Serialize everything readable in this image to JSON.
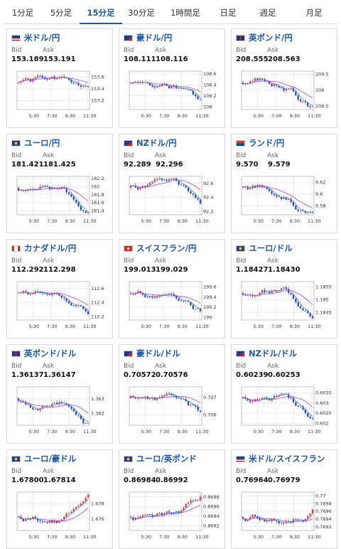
{
  "tabs": [
    {
      "label": "1分足",
      "active": false
    },
    {
      "label": "5分足",
      "active": false
    },
    {
      "label": "15分足",
      "active": true
    },
    {
      "label": "30分足",
      "active": false
    },
    {
      "label": "1時間足",
      "active": false
    },
    {
      "label": "日足",
      "active": false
    },
    {
      "label": "週足",
      "active": false
    },
    {
      "label": "月足",
      "active": false
    }
  ],
  "labels": {
    "bid": "Bid",
    "ask": "Ask"
  },
  "colors": {
    "up": "#e23b3b",
    "down": "#2a3fbf",
    "ma_fast": "#2a9bd8",
    "ma_slow": "#c23ad0",
    "grid": "#bbbbbb"
  },
  "x_ticks": [
    "5:30",
    "7:30",
    "9:30",
    "11:30"
  ],
  "cards": [
    {
      "pair": "米ドル/円",
      "flag": "us-jp",
      "bid": "153.189",
      "ask": "153.191",
      "y_ticks": [
        "153.6",
        "153.4",
        "153.2"
      ],
      "ylim": [
        153.05,
        153.7
      ]
    },
    {
      "pair": "豪ドル/円",
      "flag": "au-jp",
      "bid": "108.111",
      "ask": "108.116",
      "y_ticks": [
        "108.6",
        "108.4",
        "108.2",
        "108"
      ],
      "ylim": [
        107.95,
        108.65
      ]
    },
    {
      "pair": "英ポンド/円",
      "flag": "gb-jp",
      "bid": "208.555",
      "ask": "208.563",
      "y_ticks": [
        "209.5",
        "209",
        "208.5"
      ],
      "ylim": [
        208.4,
        209.6
      ]
    },
    {
      "pair": "ユーロ/円",
      "flag": "eu-jp",
      "bid": "181.421",
      "ask": "181.425",
      "y_ticks": [
        "182.2",
        "182",
        "181.8",
        "181.6",
        "181.4"
      ],
      "ylim": [
        181.3,
        182.25
      ]
    },
    {
      "pair": "NZドル/円",
      "flag": "nz-jp",
      "bid": "92.289",
      "ask": "92.296",
      "y_ticks": [
        "92.6",
        "92.4",
        "92.2"
      ],
      "ylim": [
        92.15,
        92.7
      ]
    },
    {
      "pair": "ランド/円",
      "flag": "za-jp",
      "bid": "9.570",
      "ask": "9.579",
      "y_ticks": [
        "9.62",
        "9.6",
        "9.58"
      ],
      "ylim": [
        9.565,
        9.63
      ]
    },
    {
      "pair": "カナダドル/円",
      "flag": "ca-jp",
      "bid": "112.292",
      "ask": "112.298",
      "y_ticks": [
        "112.6",
        "112.4",
        "112.2"
      ],
      "ylim": [
        112.15,
        112.7
      ]
    },
    {
      "pair": "スイスフラン/円",
      "flag": "ch-jp",
      "bid": "199.013",
      "ask": "199.029",
      "y_ticks": [
        "199.6",
        "199.4",
        "199.2",
        "199"
      ],
      "ylim": [
        198.95,
        199.7
      ]
    },
    {
      "pair": "ユーロ/ドル",
      "flag": "eu-us",
      "bid": "1.18427",
      "ask": "1.18430",
      "y_ticks": [
        "1.1855",
        "1.185",
        "1.1845"
      ],
      "ylim": [
        1.1842,
        1.1857
      ]
    },
    {
      "pair": "英ポンド/ドル",
      "flag": "gb-us",
      "bid": "1.36137",
      "ask": "1.36147",
      "y_ticks": [
        "1.363",
        "1.362"
      ],
      "ylim": [
        1.3612,
        1.3638
      ]
    },
    {
      "pair": "豪ドル/ドル",
      "flag": "au-us",
      "bid": "0.70572",
      "ask": "0.70576",
      "y_ticks": [
        "0.707",
        "0.706"
      ],
      "ylim": [
        0.7054,
        0.7076
      ]
    },
    {
      "pair": "NZドル/ドル",
      "flag": "nz-us",
      "bid": "0.60239",
      "ask": "0.60253",
      "y_ticks": [
        "0.6035",
        "0.603",
        "0.6025",
        "0.602"
      ],
      "ylim": [
        0.6019,
        0.6038
      ]
    },
    {
      "pair": "ユーロ/豪ドル",
      "flag": "eu-au",
      "bid": "1.67800",
      "ask": "1.67814",
      "y_ticks": [
        "1.678",
        "1.676"
      ],
      "ylim": [
        1.6745,
        1.6795
      ]
    },
    {
      "pair": "ユーロ/英ポンド",
      "flag": "eu-gb",
      "bid": "0.86984",
      "ask": "0.86992",
      "y_ticks": [
        "0.8698",
        "0.8696",
        "0.8694",
        "0.8692"
      ],
      "ylim": [
        0.8691,
        0.8699
      ]
    },
    {
      "pair": "米ドル/スイスフラン",
      "flag": "us-ch",
      "bid": "0.76964",
      "ask": "0.76979",
      "y_ticks": [
        "0.77",
        "0.7698",
        "0.7696",
        "0.7694",
        "0.7692"
      ],
      "ylim": [
        0.7691,
        0.7701
      ]
    }
  ]
}
